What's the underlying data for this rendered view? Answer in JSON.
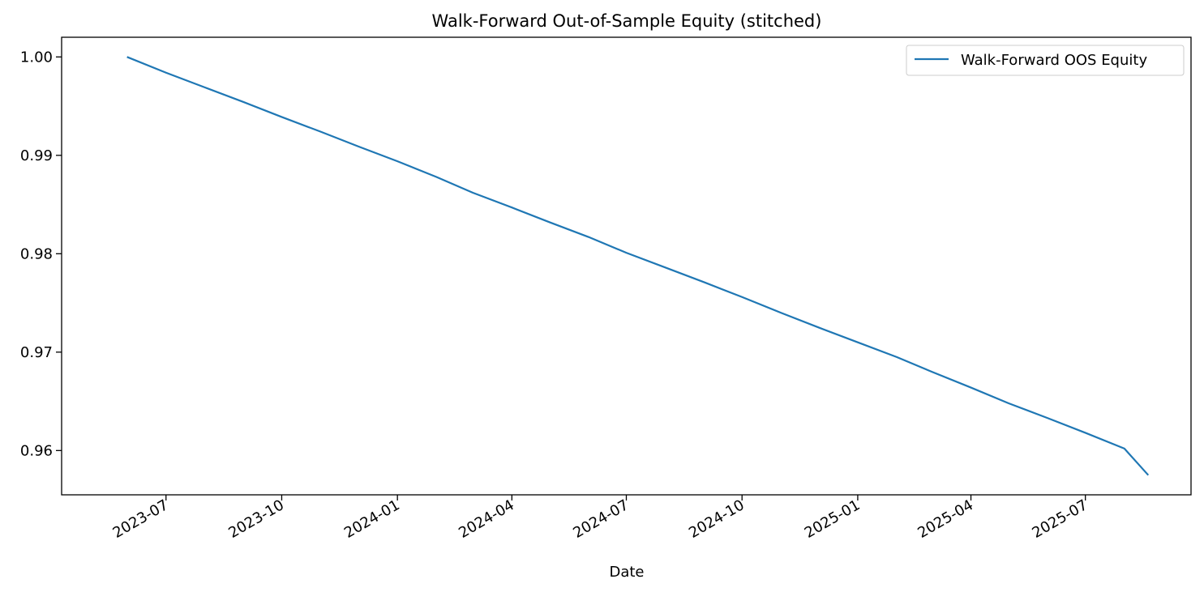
{
  "chart_data": {
    "type": "line",
    "title": "Walk-Forward Out-of-Sample Equity (stitched)",
    "xlabel": "Date",
    "ylabel": "",
    "x_ticks": [
      "2023-07",
      "2023-10",
      "2024-01",
      "2024-04",
      "2024-07",
      "2024-10",
      "2025-01",
      "2025-04",
      "2025-07"
    ],
    "y_ticks": [
      "0.96",
      "0.97",
      "0.98",
      "0.99",
      "1.00"
    ],
    "ylim": [
      0.9555,
      1.002
    ],
    "xlim": [
      "2023-04-09",
      "2025-09-23"
    ],
    "legend_position": "top-right",
    "grid": false,
    "series": [
      {
        "name": "Walk-Forward OOS Equity",
        "color": "#1f77b4",
        "x": [
          "2023-05-31",
          "2023-07-01",
          "2023-08-01",
          "2023-09-01",
          "2023-10-01",
          "2023-11-01",
          "2023-12-01",
          "2024-01-01",
          "2024-02-01",
          "2024-03-01",
          "2024-04-01",
          "2024-05-01",
          "2024-06-01",
          "2024-07-01",
          "2024-08-01",
          "2024-09-01",
          "2024-10-01",
          "2024-11-01",
          "2024-12-01",
          "2025-01-01",
          "2025-02-01",
          "2025-03-01",
          "2025-04-01",
          "2025-05-01",
          "2025-06-01",
          "2025-07-01",
          "2025-08-01",
          "2025-08-20"
        ],
        "values": [
          1.0,
          0.9984,
          0.9969,
          0.9954,
          0.9939,
          0.9924,
          0.9909,
          0.9894,
          0.9878,
          0.9862,
          0.9847,
          0.9832,
          0.9817,
          0.9801,
          0.9786,
          0.9771,
          0.9756,
          0.974,
          0.9725,
          0.971,
          0.9695,
          0.968,
          0.9664,
          0.9648,
          0.9633,
          0.9618,
          0.9602,
          0.9575
        ]
      }
    ]
  }
}
